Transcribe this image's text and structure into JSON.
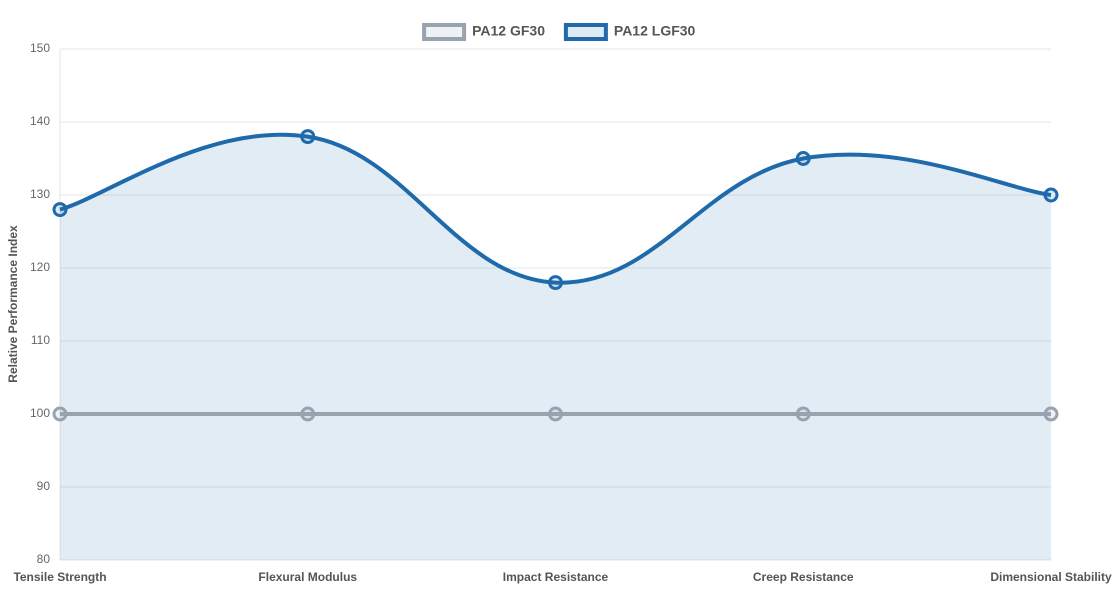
{
  "chart_data": {
    "type": "line",
    "categories": [
      "Tensile Strength",
      "Flexural Modulus",
      "Impact Resistance",
      "Creep Resistance",
      "Dimensional Stability"
    ],
    "series": [
      {
        "name": "PA12 GF30",
        "color": "#97a4b0",
        "values": [
          100,
          100,
          100,
          100,
          100
        ],
        "fill": false
      },
      {
        "name": "PA12 LGF30",
        "color": "#1f6aab",
        "values": [
          128,
          138,
          118,
          135,
          130
        ],
        "fill": true
      }
    ],
    "ylabel": "Relative Performance Index",
    "ylim": [
      80,
      150
    ],
    "yticks": [
      80,
      90,
      100,
      110,
      120,
      130,
      140,
      150
    ],
    "grid": true,
    "legend": "top"
  }
}
